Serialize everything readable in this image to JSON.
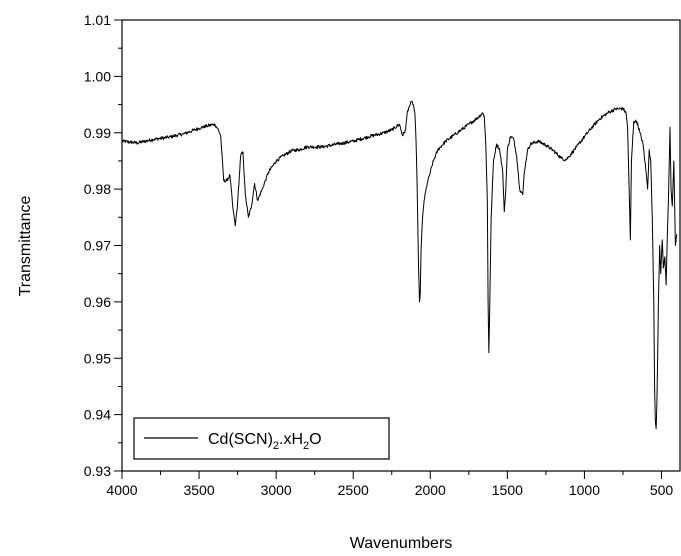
{
  "chart_data": {
    "type": "line",
    "title": "",
    "xlabel": "Wavenumbers",
    "ylabel": "Transmittance",
    "xlim": [
      4000,
      380
    ],
    "ylim": [
      0.93,
      1.01
    ],
    "x_reversed": true,
    "xticks": [
      4000,
      3500,
      3000,
      2500,
      2000,
      1500,
      1000,
      500
    ],
    "xtick_labels": [
      "4000",
      "3500",
      "3000",
      "2500",
      "2000",
      "1500",
      "1000",
      "500"
    ],
    "yticks": [
      0.93,
      0.94,
      0.95,
      0.96,
      0.97,
      0.98,
      0.99,
      1.0,
      1.01
    ],
    "ytick_labels": [
      "0.93",
      "0.94",
      "0.95",
      "0.96",
      "0.97",
      "0.98",
      "0.99",
      "1.00",
      "1.01"
    ],
    "grid": false,
    "legend": {
      "position": "bottom-left",
      "base": "Cd(SCN)",
      "sub1": "2",
      "mid": ".xH",
      "sub2": "2",
      "end": "O"
    },
    "series": [
      {
        "color": "#000000",
        "points": [
          [
            4000,
            0.9885
          ],
          [
            3900,
            0.9882
          ],
          [
            3800,
            0.9888
          ],
          [
            3700,
            0.9892
          ],
          [
            3600,
            0.9898
          ],
          [
            3500,
            0.9908
          ],
          [
            3450,
            0.9912
          ],
          [
            3400,
            0.9915
          ],
          [
            3380,
            0.9908
          ],
          [
            3360,
            0.9895
          ],
          [
            3340,
            0.9815
          ],
          [
            3320,
            0.9815
          ],
          [
            3300,
            0.9825
          ],
          [
            3280,
            0.9765
          ],
          [
            3265,
            0.9735
          ],
          [
            3250,
            0.9775
          ],
          [
            3230,
            0.986
          ],
          [
            3215,
            0.9865
          ],
          [
            3200,
            0.979
          ],
          [
            3180,
            0.975
          ],
          [
            3160,
            0.977
          ],
          [
            3140,
            0.981
          ],
          [
            3120,
            0.978
          ],
          [
            3090,
            0.98
          ],
          [
            3050,
            0.983
          ],
          [
            3000,
            0.985
          ],
          [
            2950,
            0.986
          ],
          [
            2900,
            0.9868
          ],
          [
            2850,
            0.987
          ],
          [
            2800,
            0.9875
          ],
          [
            2700,
            0.9875
          ],
          [
            2600,
            0.988
          ],
          [
            2500,
            0.9885
          ],
          [
            2400,
            0.9893
          ],
          [
            2300,
            0.99
          ],
          [
            2250,
            0.9905
          ],
          [
            2200,
            0.9915
          ],
          [
            2180,
            0.9895
          ],
          [
            2160,
            0.9905
          ],
          [
            2150,
            0.9935
          ],
          [
            2140,
            0.9945
          ],
          [
            2130,
            0.995
          ],
          [
            2120,
            0.9955
          ],
          [
            2110,
            0.995
          ],
          [
            2100,
            0.9935
          ],
          [
            2095,
            0.9905
          ],
          [
            2090,
            0.986
          ],
          [
            2085,
            0.98
          ],
          [
            2080,
            0.972
          ],
          [
            2075,
            0.965
          ],
          [
            2070,
            0.96
          ],
          [
            2065,
            0.9615
          ],
          [
            2060,
            0.969
          ],
          [
            2050,
            0.975
          ],
          [
            2040,
            0.978
          ],
          [
            2020,
            0.981
          ],
          [
            2000,
            0.983
          ],
          [
            1980,
            0.985
          ],
          [
            1950,
            0.987
          ],
          [
            1900,
            0.9885
          ],
          [
            1850,
            0.9895
          ],
          [
            1800,
            0.9905
          ],
          [
            1750,
            0.9915
          ],
          [
            1700,
            0.9925
          ],
          [
            1660,
            0.9935
          ],
          [
            1650,
            0.993
          ],
          [
            1640,
            0.988
          ],
          [
            1630,
            0.978
          ],
          [
            1625,
            0.96
          ],
          [
            1620,
            0.951
          ],
          [
            1615,
            0.958
          ],
          [
            1605,
            0.975
          ],
          [
            1590,
            0.985
          ],
          [
            1570,
            0.988
          ],
          [
            1550,
            0.987
          ],
          [
            1530,
            0.983
          ],
          [
            1520,
            0.976
          ],
          [
            1510,
            0.98
          ],
          [
            1500,
            0.987
          ],
          [
            1480,
            0.9893
          ],
          [
            1460,
            0.989
          ],
          [
            1440,
            0.986
          ],
          [
            1420,
            0.98
          ],
          [
            1400,
            0.979
          ],
          [
            1390,
            0.983
          ],
          [
            1370,
            0.9868
          ],
          [
            1350,
            0.988
          ],
          [
            1300,
            0.9885
          ],
          [
            1250,
            0.9878
          ],
          [
            1200,
            0.9868
          ],
          [
            1150,
            0.9855
          ],
          [
            1120,
            0.9852
          ],
          [
            1100,
            0.9858
          ],
          [
            1050,
            0.9875
          ],
          [
            1000,
            0.9893
          ],
          [
            950,
            0.991
          ],
          [
            900,
            0.9925
          ],
          [
            850,
            0.9935
          ],
          [
            800,
            0.9942
          ],
          [
            750,
            0.9943
          ],
          [
            730,
            0.9935
          ],
          [
            720,
            0.991
          ],
          [
            710,
            0.98
          ],
          [
            702,
            0.971
          ],
          [
            695,
            0.985
          ],
          [
            680,
            0.992
          ],
          [
            660,
            0.992
          ],
          [
            640,
            0.99
          ],
          [
            620,
            0.988
          ],
          [
            600,
            0.983
          ],
          [
            590,
            0.98
          ],
          [
            580,
            0.987
          ],
          [
            570,
            0.985
          ],
          [
            560,
            0.975
          ],
          [
            550,
            0.96
          ],
          [
            545,
            0.945
          ],
          [
            540,
            0.939
          ],
          [
            535,
            0.9375
          ],
          [
            530,
            0.942
          ],
          [
            525,
            0.95
          ],
          [
            520,
            0.96
          ],
          [
            512,
            0.97
          ],
          [
            505,
            0.965
          ],
          [
            495,
            0.971
          ],
          [
            488,
            0.966
          ],
          [
            478,
            0.968
          ],
          [
            470,
            0.963
          ],
          [
            462,
            0.972
          ],
          [
            455,
            0.978
          ],
          [
            445,
            0.991
          ],
          [
            438,
            0.98
          ],
          [
            430,
            0.977
          ],
          [
            420,
            0.985
          ],
          [
            410,
            0.97
          ],
          [
            400,
            0.972
          ]
        ]
      }
    ]
  }
}
